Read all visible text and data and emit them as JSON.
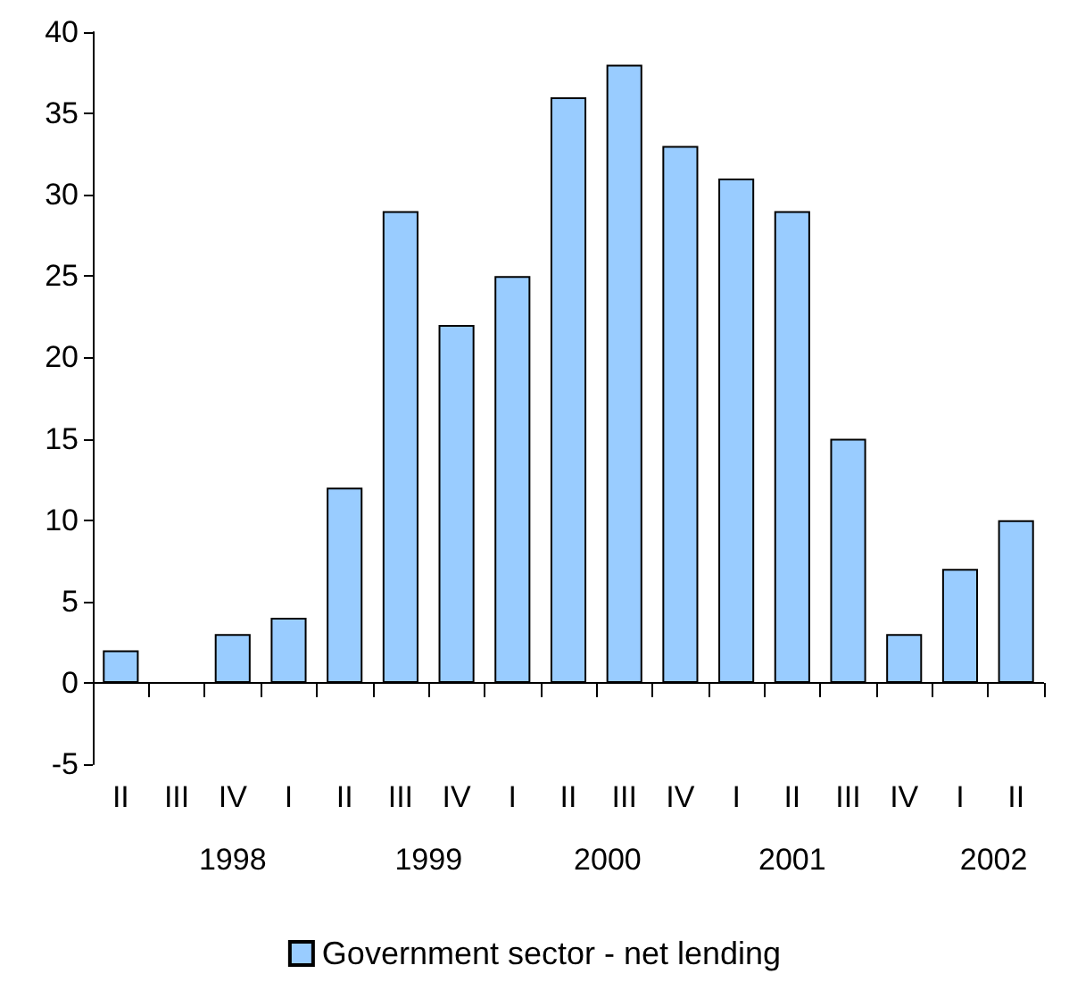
{
  "chart_data": {
    "type": "bar",
    "categories": [
      "II",
      "III",
      "IV",
      "I",
      "II",
      "III",
      "IV",
      "I",
      "II",
      "III",
      "IV",
      "I",
      "II",
      "III",
      "IV",
      "I",
      "II"
    ],
    "series": [
      {
        "name": "Government sector - net lending",
        "color": "#99ccff",
        "values": [
          2,
          0,
          3,
          4,
          12,
          29,
          22,
          25,
          36,
          38,
          33,
          31,
          29,
          15,
          3,
          7,
          10
        ]
      }
    ],
    "ref_lines": [
      {
        "axis": "y",
        "value": 0,
        "color": "#000000"
      }
    ],
    "ylim": [
      -5,
      40
    ],
    "yticks": [
      -5,
      0,
      5,
      10,
      15,
      20,
      25,
      30,
      35,
      40
    ],
    "grid": false,
    "legend": "bottom",
    "annotations": [
      "1998",
      "1999",
      "2000",
      "2001",
      "2002"
    ]
  }
}
